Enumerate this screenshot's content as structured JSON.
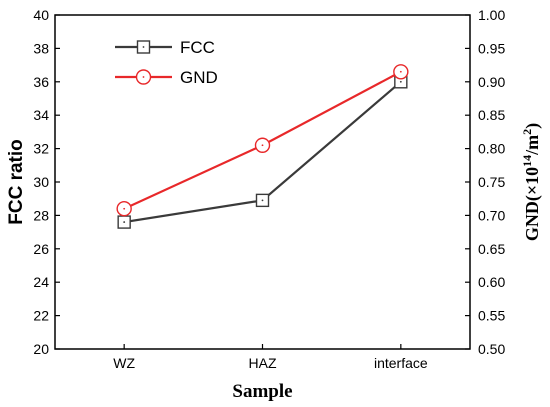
{
  "chart_data": {
    "type": "line",
    "title": "",
    "categories": [
      "WZ",
      "HAZ",
      "interface"
    ],
    "xlabel": "Sample",
    "ylabel": "FCC ratio",
    "ylim": [
      20,
      40
    ],
    "yticks": [
      "20",
      "22",
      "24",
      "26",
      "28",
      "30",
      "32",
      "34",
      "36",
      "38",
      "40"
    ],
    "y2label": {
      "prefix": "GND(×10",
      "exponent": "14",
      "suffix": "/m",
      "suffix_exponent": "2",
      "close": ")"
    },
    "y2lim": [
      0.5,
      1.0
    ],
    "y2ticks": [
      "0.50",
      "0.55",
      "0.60",
      "0.65",
      "0.70",
      "0.75",
      "0.80",
      "0.85",
      "0.90",
      "0.95",
      "1.00"
    ],
    "grid": false,
    "legend_position": "top-left",
    "series": [
      {
        "name": "FCC",
        "axis": "left",
        "values": [
          27.6,
          28.9,
          36.0
        ],
        "color": "#3a3a3a",
        "marker": "square"
      },
      {
        "name": "GND",
        "axis": "right",
        "values": [
          0.71,
          0.805,
          0.915
        ],
        "color": "#e8282a",
        "marker": "circle"
      }
    ]
  }
}
